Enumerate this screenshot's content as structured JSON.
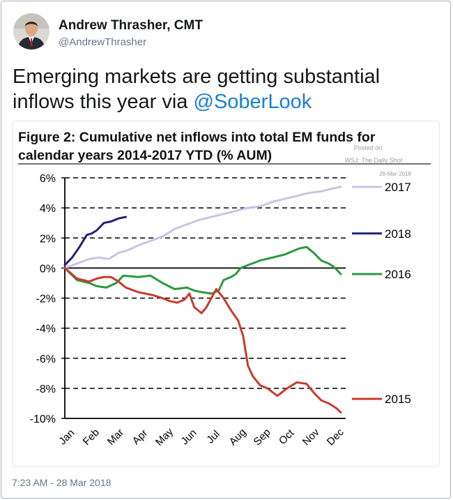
{
  "tweet": {
    "author_name": "Andrew Thrasher, CMT",
    "author_handle": "@AndrewThrasher",
    "text_prefix": "Emerging markets are getting substantial inflows this year via ",
    "mention": "@SoberLook",
    "timestamp": "7:23 AM - 28 Mar 2018"
  },
  "chart_data": {
    "type": "line",
    "title_line1": "Figure 2: Cumulative net inflows into total EM funds for",
    "title_line2": "calendar years 2014-2017 YTD (% AUM)",
    "watermark": [
      "Posted on",
      "WSJ: The Daily Shot",
      "28-Mar-2018"
    ],
    "x_ticks": [
      "Jan",
      "Feb",
      "Mar",
      "Apr",
      "May",
      "Jun",
      "Jul",
      "Aug",
      "Sep",
      "Oct",
      "Nov",
      "Dec"
    ],
    "y_ticks": [
      "6%",
      "4%",
      "2%",
      "0%",
      "-2%",
      "-4%",
      "-6%",
      "-8%",
      "-10%"
    ],
    "ylim": [
      -10,
      6
    ],
    "xlim": [
      0,
      11.5
    ],
    "grid": "horizontal dashed",
    "series": [
      {
        "name": "2017",
        "color": "#c8c4e4",
        "x": [
          0,
          0.5,
          1,
          1.4,
          1.8,
          2.2,
          2.6,
          3,
          3.5,
          4,
          4.5,
          5,
          5.5,
          6,
          6.5,
          7,
          7.5,
          8,
          8.5,
          9,
          9.5,
          10,
          10.5,
          11,
          11.3
        ],
        "values": [
          0,
          0.3,
          0.6,
          0.7,
          0.6,
          1.0,
          1.2,
          1.5,
          1.8,
          2.1,
          2.6,
          2.9,
          3.2,
          3.4,
          3.6,
          3.8,
          4.0,
          4.1,
          4.4,
          4.6,
          4.8,
          5.0,
          5.1,
          5.3,
          5.4
        ]
      },
      {
        "name": "2018",
        "color": "#22237a",
        "x": [
          0,
          0.3,
          0.6,
          0.9,
          1.1,
          1.3,
          1.6,
          1.9,
          2.2,
          2.5
        ],
        "values": [
          0.2,
          0.7,
          1.4,
          2.2,
          2.3,
          2.5,
          3.0,
          3.1,
          3.3,
          3.4
        ]
      },
      {
        "name": "2016",
        "color": "#2a9a3f",
        "x": [
          0,
          0.5,
          1,
          1.3,
          1.7,
          2.1,
          2.4,
          3,
          3.5,
          4,
          4.5,
          5,
          5.3,
          5.6,
          6,
          6.3,
          6.5,
          6.8,
          7,
          7.2,
          7.5,
          8,
          8.5,
          9,
          9.3,
          9.6,
          9.9,
          10.2,
          10.5,
          10.8,
          11,
          11.3
        ],
        "values": [
          0,
          -0.8,
          -1.0,
          -1.2,
          -1.3,
          -1.0,
          -0.5,
          -0.6,
          -0.5,
          -1.0,
          -1.4,
          -1.3,
          -1.5,
          -1.6,
          -1.7,
          -1.5,
          -0.8,
          -0.6,
          -0.4,
          0.0,
          0.2,
          0.5,
          0.7,
          0.9,
          1.1,
          1.3,
          1.4,
          1.0,
          0.5,
          0.3,
          0.1,
          -0.4
        ]
      },
      {
        "name": "2015",
        "color": "#c93a2e",
        "x": [
          0,
          0.5,
          1,
          1.3,
          1.6,
          1.9,
          2.2,
          2.5,
          3,
          3.3,
          3.6,
          4,
          4.3,
          4.6,
          4.9,
          5.1,
          5.3,
          5.6,
          5.8,
          6.0,
          6.2,
          6.5,
          6.8,
          7.1,
          7.3,
          7.5,
          7.7,
          8,
          8.3,
          8.7,
          9.1,
          9.5,
          9.9,
          10.2,
          10.5,
          10.8,
          11.1,
          11.3
        ],
        "values": [
          0,
          -0.7,
          -0.9,
          -0.7,
          -0.6,
          -0.6,
          -0.9,
          -1.3,
          -1.6,
          -1.7,
          -1.8,
          -2.0,
          -2.2,
          -2.3,
          -2.1,
          -1.7,
          -2.6,
          -3.0,
          -2.6,
          -2.0,
          -1.4,
          -2.0,
          -2.8,
          -3.5,
          -4.5,
          -6.5,
          -7.2,
          -7.8,
          -8.0,
          -8.5,
          -8.0,
          -7.6,
          -7.7,
          -8.3,
          -8.8,
          -9.0,
          -9.3,
          -9.6
        ]
      }
    ]
  }
}
